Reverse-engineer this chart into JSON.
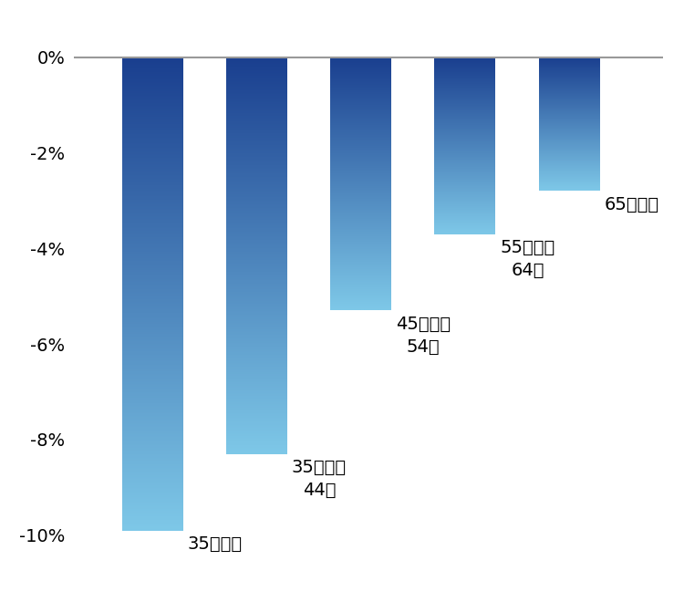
{
  "categories": [
    "35歳以下",
    "35歳から\n44歳",
    "45歳から\n54歳",
    "55歳から\n64歳",
    "65歳以上"
  ],
  "values": [
    -9.9,
    -8.3,
    -5.3,
    -3.7,
    -2.8
  ],
  "ylim": [
    -11.0,
    0.8
  ],
  "yticks": [
    0,
    -2,
    -4,
    -6,
    -8,
    -10
  ],
  "ytick_labels": [
    "0%",
    "-2%",
    "-4%",
    "-6%",
    "-8%",
    "-10%"
  ],
  "bar_top_color": "#1a3f8f",
  "bar_bottom_color": "#7ec8e8",
  "bar_width": 0.58,
  "background_color": "#ffffff",
  "label_fontsize": 14,
  "tick_fontsize": 14,
  "top_line_color": "#999999",
  "label_offsets": [
    0.1,
    0.1,
    0.1,
    0.1,
    0.1
  ]
}
